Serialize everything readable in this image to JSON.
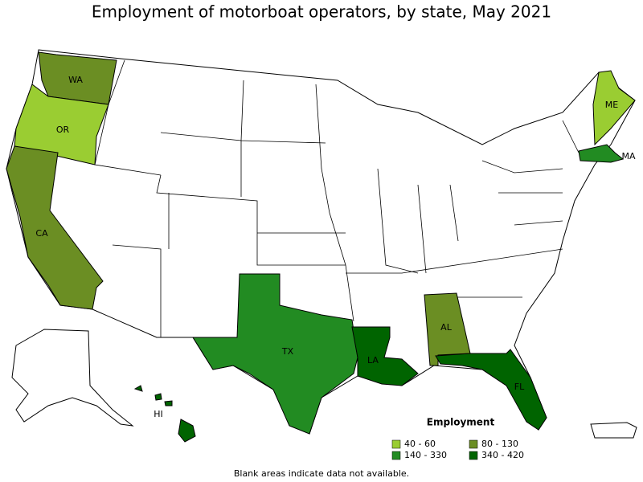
{
  "title": "Employment of motorboat operators, by state, May 2021",
  "states": [
    {
      "abbr": "WA",
      "color": "#6b8e23"
    },
    {
      "abbr": "OR",
      "color": "#9acd32"
    },
    {
      "abbr": "CA",
      "color": "#6b8e23"
    },
    {
      "abbr": "ME",
      "color": "#9acd32"
    },
    {
      "abbr": "MA",
      "color": "#228b22"
    },
    {
      "abbr": "TX",
      "color": "#228b22"
    },
    {
      "abbr": "LA",
      "color": "#006400"
    },
    {
      "abbr": "AL",
      "color": "#6b8e23"
    },
    {
      "abbr": "FL",
      "color": "#006400"
    },
    {
      "abbr": "HI",
      "color": "#006400"
    }
  ],
  "legend": {
    "title": "Employment",
    "items": [
      {
        "label": "40 - 60",
        "color": "#9acd32"
      },
      {
        "label": "80 - 130",
        "color": "#6b8e23"
      },
      {
        "label": "140 - 330",
        "color": "#228b22"
      },
      {
        "label": "340 - 420",
        "color": "#006400"
      }
    ]
  },
  "footnote": "Blank areas indicate data not available."
}
